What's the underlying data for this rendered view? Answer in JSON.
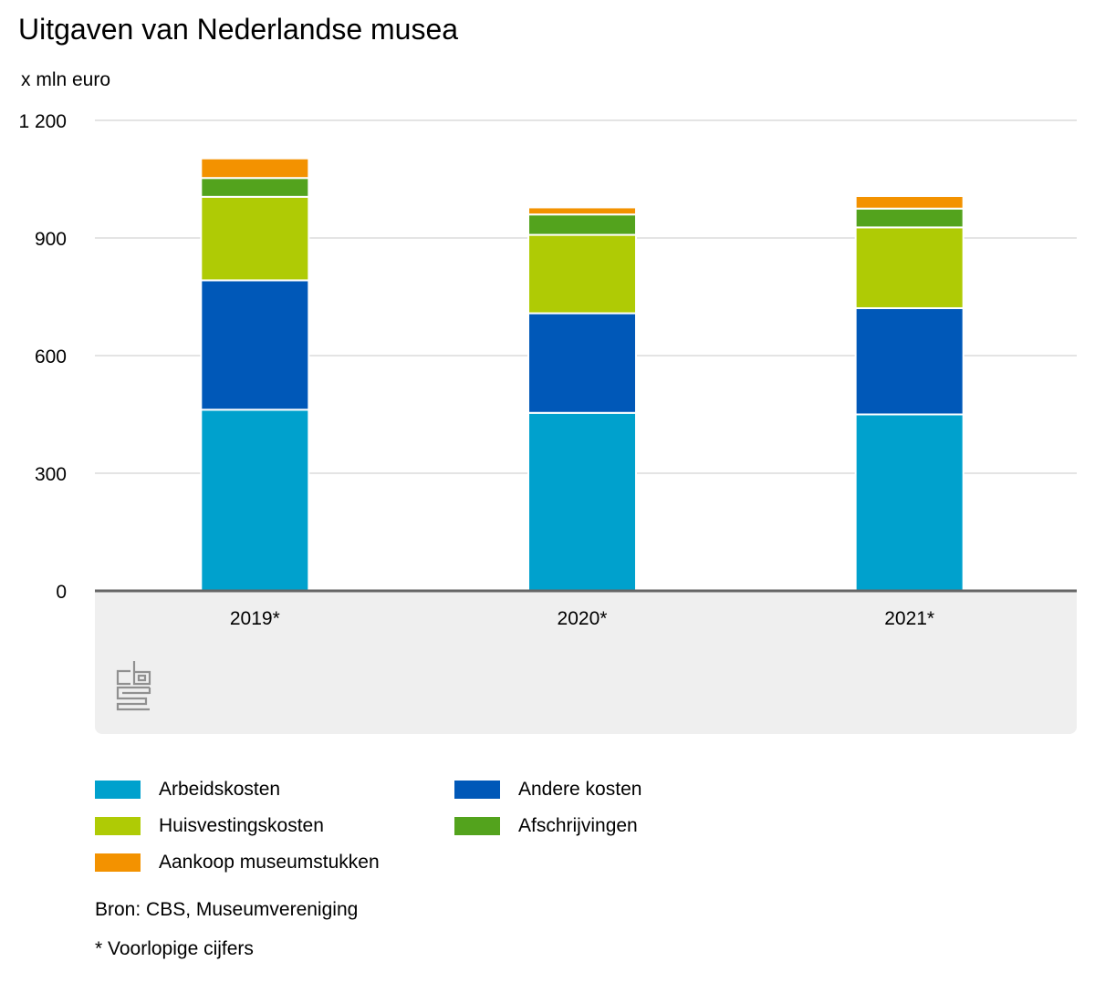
{
  "title": "Uitgaven van Nederlandse musea",
  "unit_label": "x mln euro",
  "source": "Bron: CBS, Museumvereniging",
  "footnote": "* Voorlopige cijfers",
  "logo": "cbs-logo",
  "chart_data": {
    "type": "bar",
    "stacked": true,
    "title": "Uitgaven van Nederlandse musea",
    "ylabel": "x mln euro",
    "categories": [
      "2019*",
      "2020*",
      "2021*"
    ],
    "ylim": [
      0,
      1200
    ],
    "yticks": [
      0,
      300,
      600,
      900,
      1200
    ],
    "ytick_labels": [
      "0",
      "300",
      "600",
      "900",
      "1 200"
    ],
    "grid": true,
    "legend_position": "bottom",
    "series": [
      {
        "name": "Arbeidskosten",
        "color": "#00a1cd",
        "values": [
          462,
          454,
          450
        ]
      },
      {
        "name": "Andere kosten",
        "color": "#0058b8",
        "values": [
          330,
          254,
          271
        ]
      },
      {
        "name": "Huisvestingskosten",
        "color": "#afcb05",
        "values": [
          213,
          200,
          206
        ]
      },
      {
        "name": "Afschrijvingen",
        "color": "#53a31d",
        "values": [
          48,
          52,
          48
        ]
      },
      {
        "name": "Aankoop museumstukken",
        "color": "#f39200",
        "values": [
          50,
          18,
          32
        ]
      }
    ]
  }
}
